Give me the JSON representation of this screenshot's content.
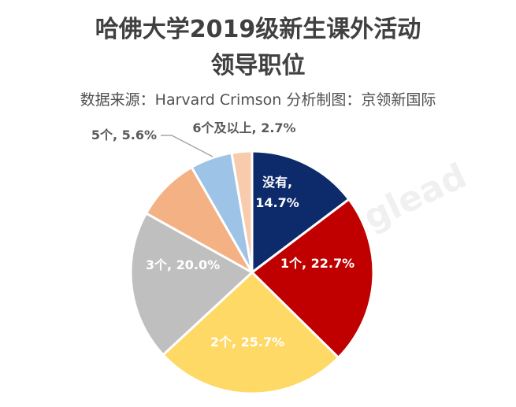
{
  "chart_data": {
    "type": "pie",
    "title": "哈佛大学2019级新生课外活动领导职位",
    "title_lines": [
      "哈佛大学2019级新生课外活动",
      "领导职位"
    ],
    "subtitle": "数据来源：Harvard Crimson    分析制图：京领新国际",
    "watermark": "京领新国际 Kinglead",
    "slices": [
      {
        "label": "没有",
        "value": 14.7,
        "data_label": "没有,",
        "data_label2": "14.7%",
        "color": "#0d2a6b",
        "text_color": "#ffffff"
      },
      {
        "label": "1个",
        "value": 22.7,
        "data_label": "1个, 22.7%",
        "color": "#c00000",
        "text_color": "#ffffff"
      },
      {
        "label": "2个",
        "value": 25.7,
        "data_label": "2个, 25.7%",
        "color": "#ffd966",
        "text_color": "#ffffff"
      },
      {
        "label": "3个",
        "value": 20.0,
        "data_label": "3个, 20.0%",
        "color": "#bfbfbf",
        "text_color": "#ffffff"
      },
      {
        "label": "",
        "value": 8.6,
        "data_label": "",
        "color": "#f4b183",
        "text_color": "#ffffff"
      },
      {
        "label": "5个",
        "value": 5.6,
        "data_label": "5个, 5.6%",
        "color": "#9dc3e6",
        "text_color": "#595959"
      },
      {
        "label": "6个及以上",
        "value": 2.7,
        "data_label": "6个及以上, 2.7%",
        "color": "#f8cbad",
        "text_color": "#595959"
      }
    ],
    "start_angle": "top",
    "direction": "clockwise",
    "legend": "none"
  }
}
